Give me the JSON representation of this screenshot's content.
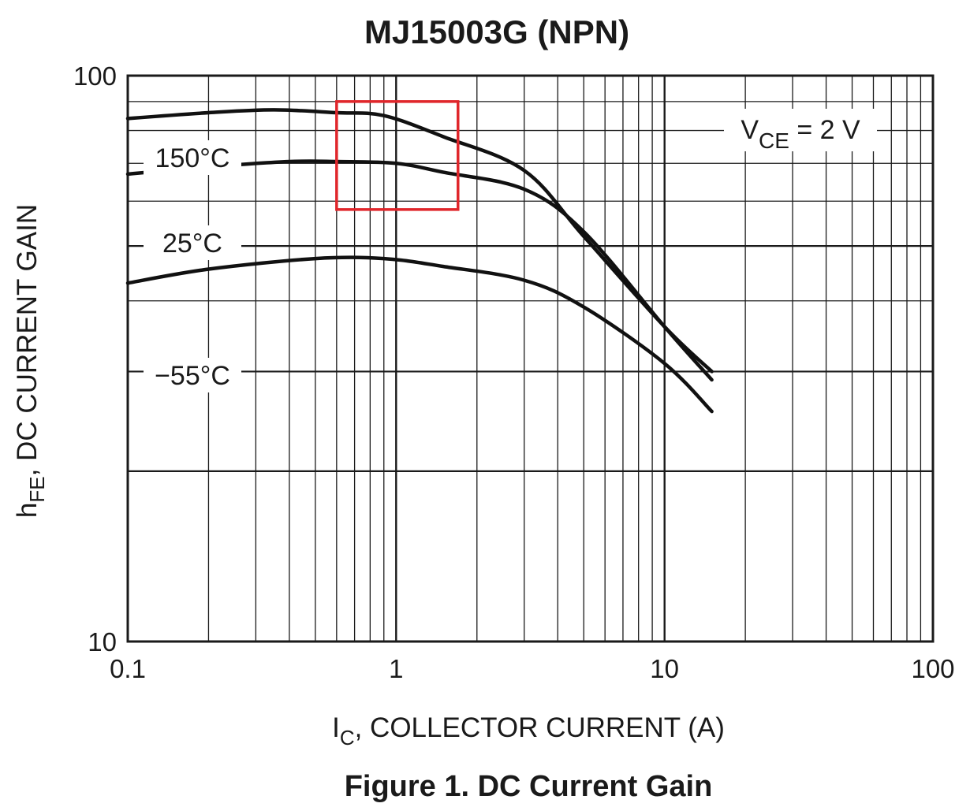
{
  "chart_data": {
    "type": "line",
    "title": "MJ15003G (NPN)",
    "caption": "Figure 1. DC Current Gain",
    "xscale": "log",
    "yscale": "log",
    "xlim": [
      0.1,
      100
    ],
    "ylim": [
      10,
      100
    ],
    "xticks": [
      {
        "value": 0.1,
        "label": "0.1"
      },
      {
        "value": 1,
        "label": "1"
      },
      {
        "value": 10,
        "label": "10"
      },
      {
        "value": 100,
        "label": "100"
      }
    ],
    "yticks": [
      {
        "value": 100,
        "label": "100"
      },
      {
        "value": 10,
        "label": "10"
      }
    ],
    "xlabel_main": "I",
    "xlabel_sub": "C",
    "xlabel_rest": ", COLLECTOR CURRENT (A)",
    "ylabel_main": "h",
    "ylabel_sub": "FE",
    "ylabel_rest": ", DC CURRENT GAIN",
    "annotation": {
      "main": "V",
      "sub": "CE",
      "rest": " = 2 V"
    },
    "grid": "log-major-minor",
    "series": [
      {
        "name": "150°C",
        "x": [
          0.1,
          0.2,
          0.35,
          0.6,
          0.9,
          1.5,
          3,
          5,
          10,
          15
        ],
        "y": [
          84,
          86,
          87,
          86,
          85,
          78,
          68,
          52,
          36,
          30
        ]
      },
      {
        "name": "25°C",
        "x": [
          0.1,
          0.2,
          0.4,
          0.6,
          1,
          1.5,
          3,
          5,
          10,
          15
        ],
        "y": [
          67,
          69,
          70.5,
          70.5,
          70,
          67.5,
          63,
          53,
          36,
          29
        ]
      },
      {
        "name": "−55°C",
        "x": [
          0.1,
          0.2,
          0.5,
          0.9,
          1.5,
          3,
          5,
          10,
          15
        ],
        "y": [
          43,
          45.5,
          47.5,
          47.5,
          46,
          43.5,
          39,
          31,
          25.5
        ]
      }
    ],
    "highlight_box": {
      "x": [
        0.6,
        1.7
      ],
      "y": [
        58,
        90
      ],
      "color": "#e0262b"
    }
  }
}
